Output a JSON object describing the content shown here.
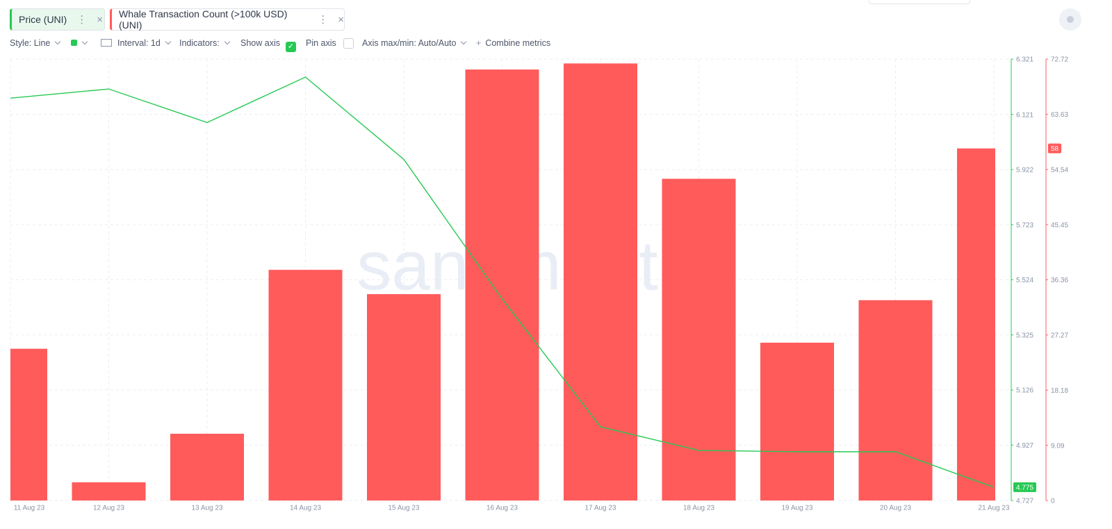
{
  "toolbar": {
    "style": "Style: Line",
    "interval": "Interval: 1d",
    "indicators": "Indicators:",
    "show_axis": "Show axis",
    "pin_axis": "Pin axis",
    "axis_maxmin": "Axis max/min: Auto/Auto",
    "combine": "Combine metrics"
  },
  "chart_data": {
    "type": "combo",
    "watermark": "santiment",
    "categories": [
      "11 Aug 23",
      "12 Aug 23",
      "13 Aug 23",
      "14 Aug 23",
      "15 Aug 23",
      "16 Aug 23",
      "17 Aug 23",
      "18 Aug 23",
      "19 Aug 23",
      "20 Aug 23",
      "21 Aug 23"
    ],
    "series": [
      {
        "name": "Price (UNI)",
        "type": "line",
        "axis": "y",
        "color": "#26c953",
        "values": [
          6.18,
          6.213,
          6.092,
          6.256,
          5.959,
          5.455,
          4.993,
          4.908,
          4.903,
          4.903,
          4.775
        ]
      },
      {
        "name": "Whale Transaction Count (>100k USD) (UNI)",
        "type": "bar",
        "axis": "y2",
        "color": "#ff5b5b",
        "values": [
          25,
          3,
          11,
          38,
          34,
          71,
          72,
          53,
          26,
          33,
          58
        ]
      }
    ],
    "ylim": [
      4.727,
      6.321
    ],
    "yticks": [
      4.727,
      4.927,
      5.126,
      5.325,
      5.524,
      5.723,
      5.922,
      6.121,
      6.321
    ],
    "y2lim": [
      0,
      72.72
    ],
    "y2ticks": [
      0,
      9.09,
      18.18,
      27.27,
      36.36,
      45.45,
      54.54,
      63.63,
      72.72
    ],
    "grid": true,
    "last_value_badge": true
  }
}
